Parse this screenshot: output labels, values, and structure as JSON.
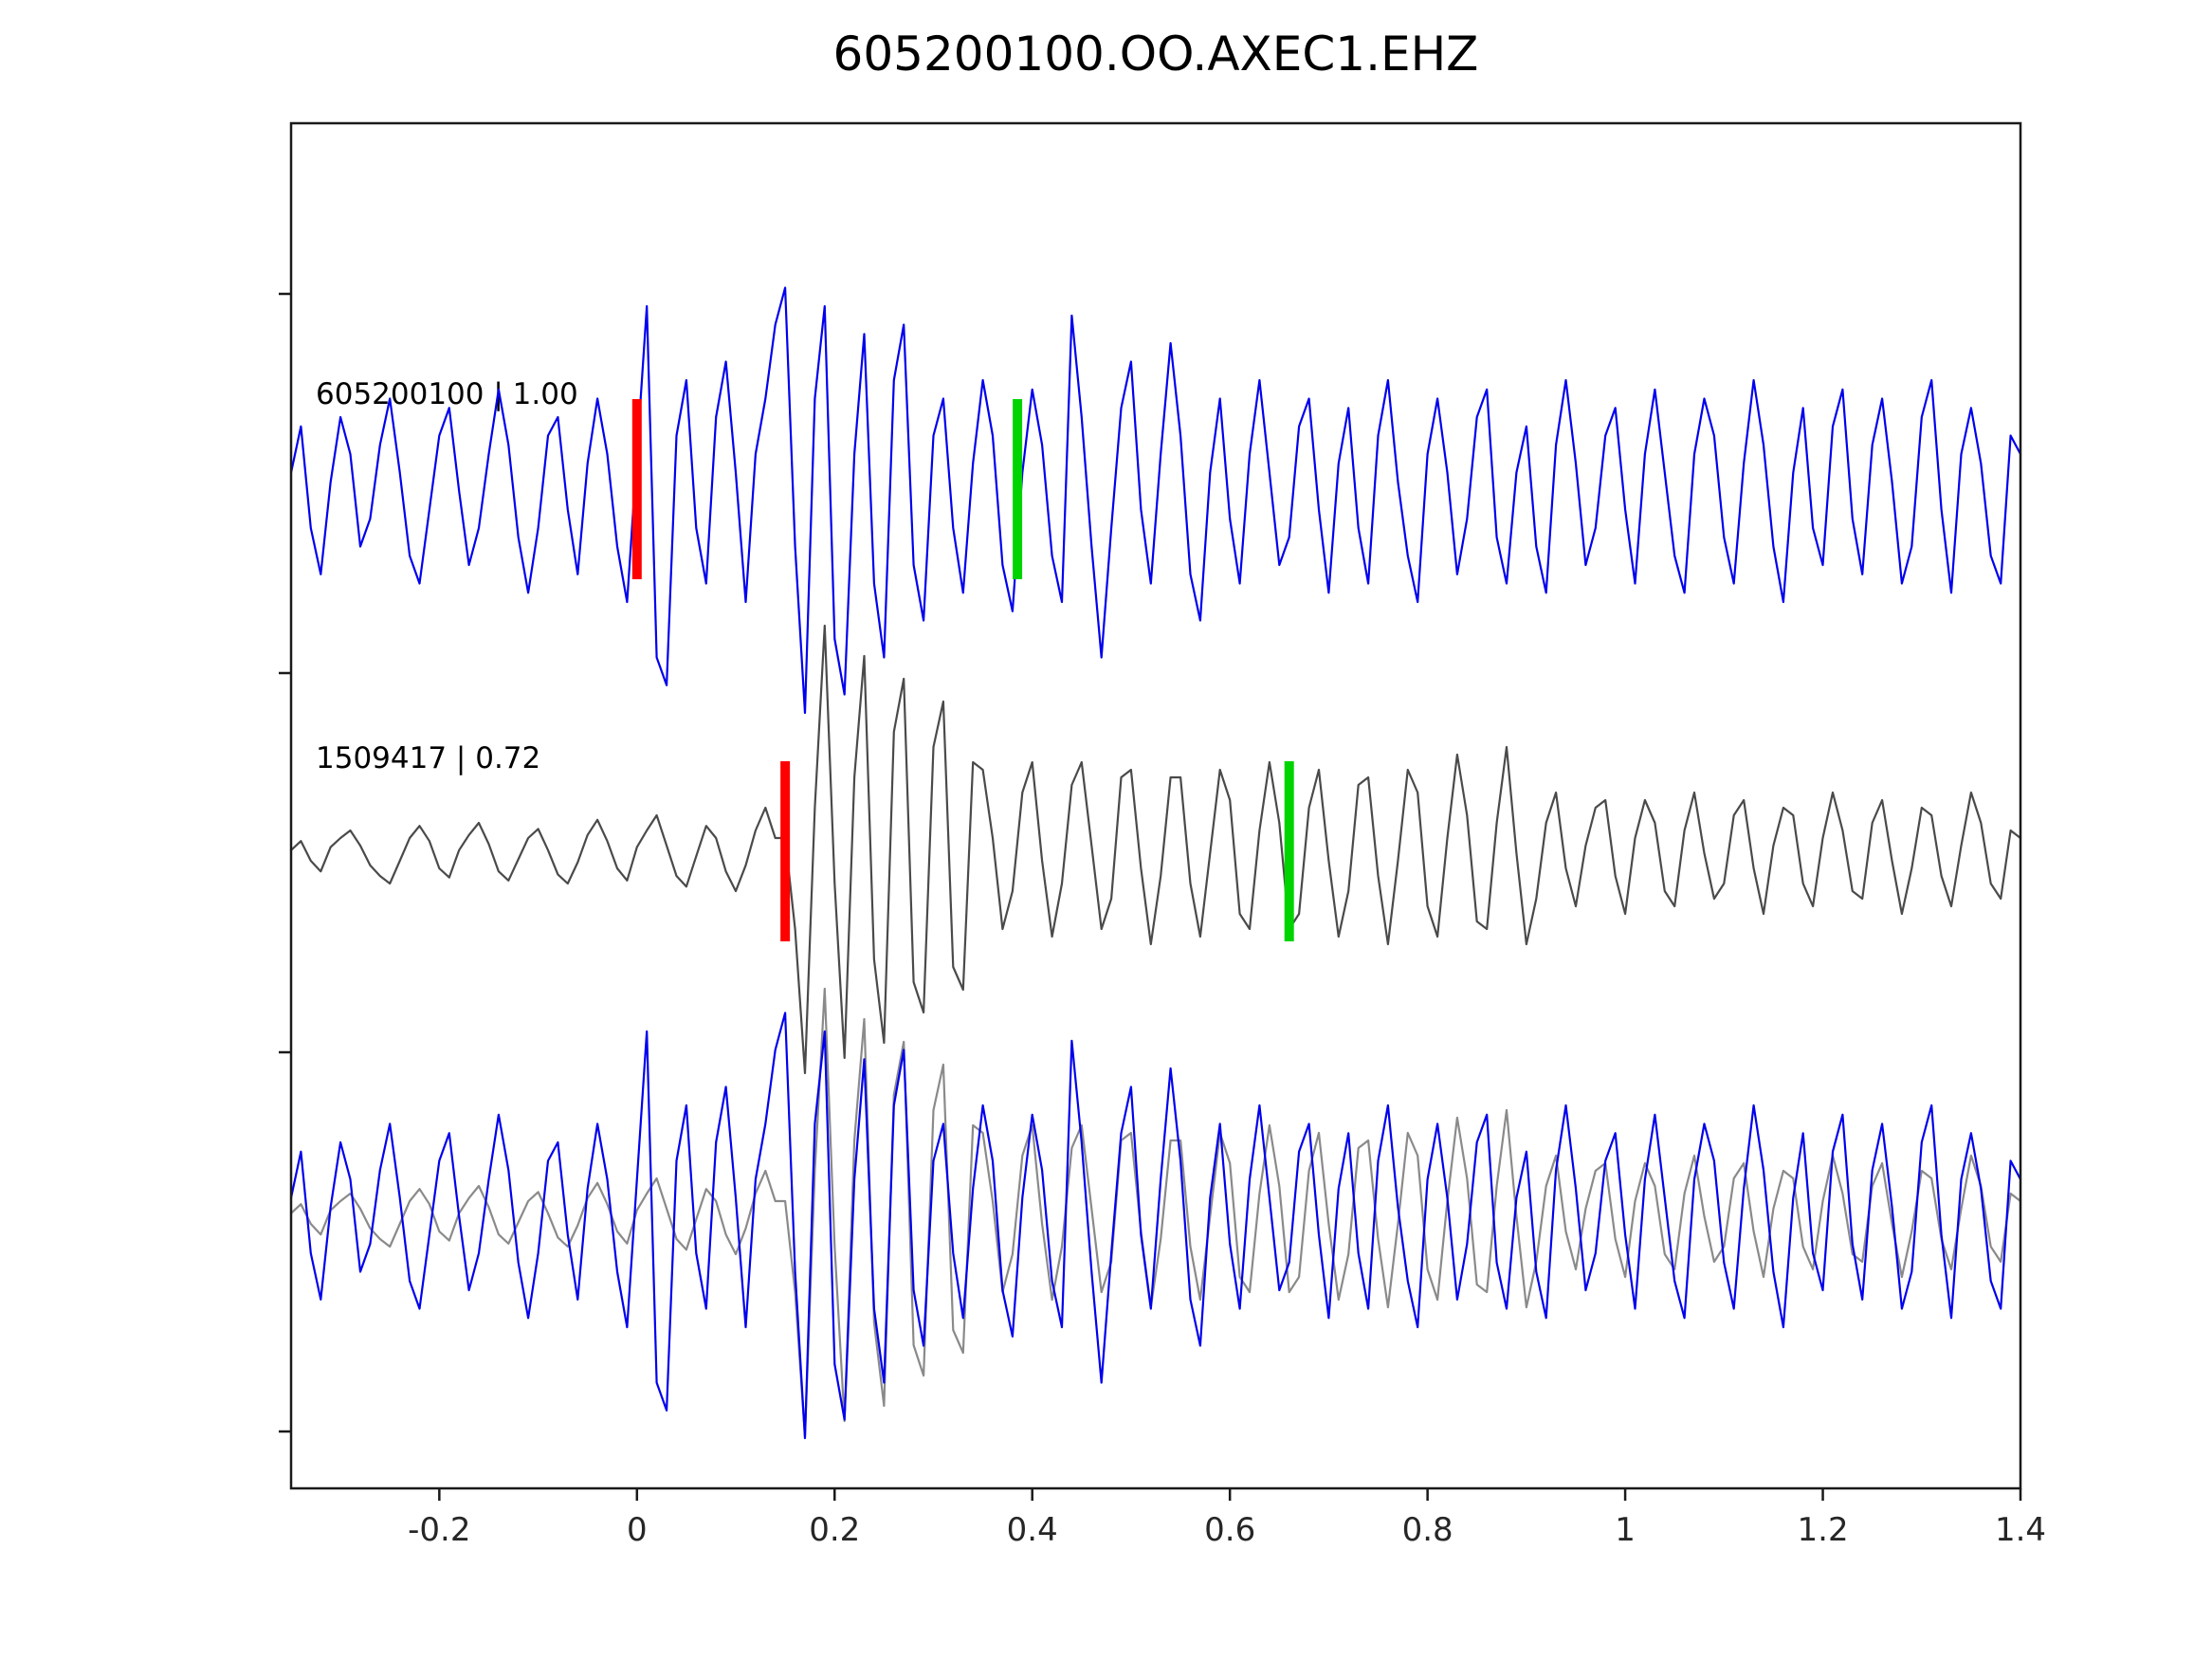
{
  "chart_data": {
    "type": "line",
    "title": "605200100.OO.AXEC1.EHZ",
    "xlabel": "",
    "ylabel": "",
    "xlim": [
      -0.35,
      1.4
    ],
    "grid": false,
    "legend_position": "none",
    "x_start": -0.35,
    "x_step": 0.01,
    "x_ticks": [
      "-0.2",
      "0",
      "0.2",
      "0.4",
      "0.6",
      "0.8",
      "1",
      "1.2",
      "1.4"
    ],
    "x_tick_values": [
      -0.2,
      0,
      0.2,
      0.4,
      0.6,
      0.8,
      1,
      1.2,
      1.4
    ],
    "series": [
      {
        "name": "template-trace",
        "label": "605200100 | 1.00",
        "color": "#0000ee",
        "row": 0,
        "values": [
          0.1,
          0.35,
          -0.2,
          -0.45,
          0.05,
          0.4,
          0.2,
          -0.3,
          -0.15,
          0.25,
          0.5,
          0.1,
          -0.35,
          -0.5,
          -0.1,
          0.3,
          0.45,
          0.0,
          -0.4,
          -0.2,
          0.2,
          0.55,
          0.25,
          -0.25,
          -0.55,
          -0.2,
          0.3,
          0.4,
          -0.1,
          -0.45,
          0.15,
          0.5,
          0.2,
          -0.3,
          -0.6,
          0.2,
          1.0,
          -0.9,
          -1.05,
          0.3,
          0.6,
          -0.2,
          -0.5,
          0.4,
          0.7,
          0.1,
          -0.6,
          0.2,
          0.5,
          0.9,
          1.1,
          -0.3,
          -1.2,
          0.5,
          1.0,
          -0.8,
          -1.1,
          0.2,
          0.85,
          -0.5,
          -0.9,
          0.6,
          0.9,
          -0.4,
          -0.7,
          0.3,
          0.5,
          -0.2,
          -0.55,
          0.15,
          0.6,
          0.3,
          -0.4,
          -0.65,
          0.1,
          0.55,
          0.25,
          -0.35,
          -0.6,
          0.95,
          0.4,
          -0.3,
          -0.9,
          -0.2,
          0.45,
          0.7,
          -0.1,
          -0.5,
          0.2,
          0.8,
          0.3,
          -0.45,
          -0.7,
          0.1,
          0.5,
          -0.15,
          -0.5,
          0.2,
          0.6,
          0.1,
          -0.4,
          -0.25,
          0.35,
          0.5,
          -0.1,
          -0.55,
          0.15,
          0.45,
          -0.2,
          -0.5,
          0.3,
          0.6,
          0.05,
          -0.35,
          -0.6,
          0.2,
          0.5,
          0.1,
          -0.45,
          -0.15,
          0.4,
          0.55,
          -0.25,
          -0.5,
          0.1,
          0.35,
          -0.3,
          -0.55,
          0.25,
          0.6,
          0.15,
          -0.4,
          -0.2,
          0.3,
          0.45,
          -0.1,
          -0.5,
          0.2,
          0.55,
          0.1,
          -0.35,
          -0.55,
          0.2,
          0.5,
          0.3,
          -0.25,
          -0.5,
          0.15,
          0.6,
          0.25,
          -0.3,
          -0.6,
          0.1,
          0.45,
          -0.2,
          -0.4,
          0.35,
          0.55,
          -0.15,
          -0.45,
          0.25,
          0.5,
          0.05,
          -0.5,
          -0.3,
          0.4,
          0.6,
          -0.1,
          -0.55,
          0.2,
          0.45,
          0.15,
          -0.35,
          -0.5,
          0.3,
          0.2
        ]
      },
      {
        "name": "detection-trace",
        "label": "1509417 | 0.72",
        "color": "#4a4a4a",
        "row": 1,
        "values": [
          0.02,
          0.08,
          -0.05,
          -0.12,
          0.04,
          0.1,
          0.15,
          0.05,
          -0.08,
          -0.15,
          -0.2,
          -0.05,
          0.1,
          0.18,
          0.08,
          -0.1,
          -0.16,
          0.02,
          0.12,
          0.2,
          0.06,
          -0.12,
          -0.18,
          -0.04,
          0.1,
          0.16,
          0.02,
          -0.14,
          -0.2,
          -0.06,
          0.12,
          0.22,
          0.08,
          -0.1,
          -0.18,
          0.04,
          0.15,
          0.25,
          0.05,
          -0.15,
          -0.22,
          -0.02,
          0.18,
          0.1,
          -0.12,
          -0.25,
          -0.08,
          0.15,
          0.3,
          0.1,
          0.1,
          -0.5,
          -1.45,
          0.3,
          1.5,
          -0.2,
          -1.35,
          0.5,
          1.3,
          -0.7,
          -1.25,
          0.8,
          1.15,
          -0.85,
          -1.05,
          0.7,
          1.0,
          -0.75,
          -0.9,
          0.6,
          0.55,
          0.1,
          -0.5,
          -0.25,
          0.4,
          0.6,
          -0.05,
          -0.55,
          -0.2,
          0.45,
          0.6,
          0.05,
          -0.5,
          -0.3,
          0.5,
          0.55,
          -0.1,
          -0.6,
          -0.15,
          0.5,
          0.5,
          -0.2,
          -0.55,
          0.0,
          0.55,
          0.35,
          -0.4,
          -0.5,
          0.15,
          0.6,
          0.2,
          -0.5,
          -0.4,
          0.3,
          0.55,
          -0.05,
          -0.55,
          -0.25,
          0.45,
          0.5,
          -0.15,
          -0.6,
          -0.05,
          0.55,
          0.4,
          -0.35,
          -0.55,
          0.1,
          0.65,
          0.25,
          -0.45,
          -0.5,
          0.2,
          0.7,
          0.0,
          -0.6,
          -0.3,
          0.2,
          0.4,
          -0.1,
          -0.35,
          0.05,
          0.3,
          0.35,
          -0.15,
          -0.4,
          0.1,
          0.35,
          0.2,
          -0.25,
          -0.35,
          0.15,
          0.4,
          0.0,
          -0.3,
          -0.2,
          0.25,
          0.35,
          -0.1,
          -0.4,
          0.05,
          0.3,
          0.25,
          -0.2,
          -0.35,
          0.1,
          0.4,
          0.15,
          -0.25,
          -0.3,
          0.2,
          0.35,
          -0.05,
          -0.4,
          -0.1,
          0.3,
          0.25,
          -0.15,
          -0.35,
          0.05,
          0.4,
          0.2,
          -0.2,
          -0.3,
          0.15,
          0.1
        ]
      },
      {
        "name": "overlay-detection-trace",
        "label": "",
        "color": "#8a8a8a",
        "row": 2,
        "ref": 1
      },
      {
        "name": "overlay-template-trace",
        "label": "",
        "color": "#0000ee",
        "row": 2,
        "ref": 0
      }
    ],
    "picks": [
      {
        "name": "template-pick-start",
        "row": 0,
        "x": 0.0,
        "color": "#ff0000"
      },
      {
        "name": "template-pick-end",
        "row": 0,
        "x": 0.385,
        "color": "#00d400"
      },
      {
        "name": "detection-pick-start",
        "row": 1,
        "x": 0.15,
        "color": "#ff0000"
      },
      {
        "name": "detection-pick-end",
        "row": 1,
        "x": 0.66,
        "color": "#00d400"
      }
    ]
  }
}
